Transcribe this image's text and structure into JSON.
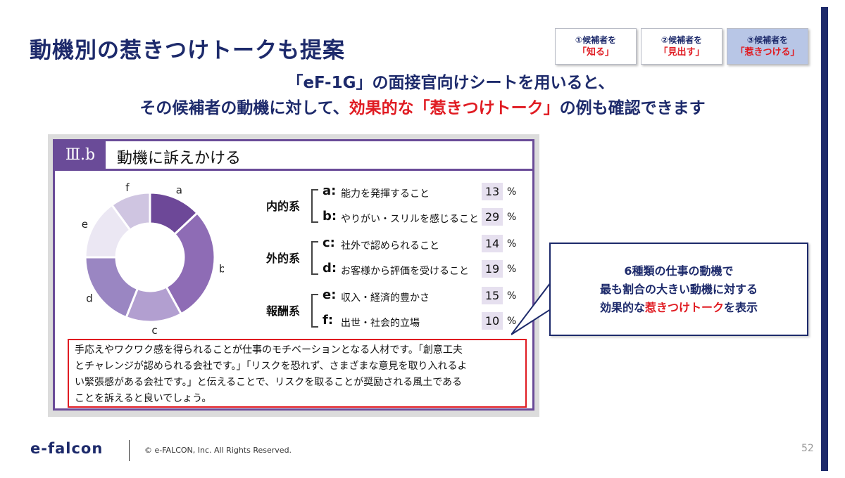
{
  "title": "動機別の惹きつけトークも提案",
  "steps": [
    {
      "top": "①候補者を",
      "bottom": "「知る」",
      "active": false
    },
    {
      "top": "②候補者を",
      "bottom": "「見出す」",
      "active": false
    },
    {
      "top": "③候補者を",
      "bottom": "「惹きつける」",
      "active": true
    }
  ],
  "subtitle": {
    "line1": "「eF-1G」の面接官向けシートを用いると、",
    "line2_pre": "その候補者の動機に対して、",
    "line2_red": "効果的な「惹きつけトーク」",
    "line2_post": "の例も確認できます"
  },
  "panel": {
    "badge": "Ⅲ.b",
    "title": "動機に訴えかける",
    "chart_data": {
      "type": "pie",
      "categories": [
        "a",
        "b",
        "c",
        "d",
        "e",
        "f"
      ],
      "values": [
        13,
        29,
        14,
        19,
        15,
        10
      ],
      "colors": [
        "#6d4898",
        "#8e6cb5",
        "#b29fd0",
        "#9a86c2",
        "#ebe7f3",
        "#cfc5e1"
      ]
    },
    "groups": [
      {
        "label": "内的系",
        "items": [
          {
            "letter": "a:",
            "desc": "能力を発揮すること",
            "pct": "13"
          },
          {
            "letter": "b:",
            "desc": "やりがい・スリルを感じること",
            "pct": "29"
          }
        ]
      },
      {
        "label": "外的系",
        "items": [
          {
            "letter": "c:",
            "desc": "社外で認められること",
            "pct": "14"
          },
          {
            "letter": "d:",
            "desc": "お客様から評価を受けること",
            "pct": "19"
          }
        ]
      },
      {
        "label": "報酬系",
        "items": [
          {
            "letter": "e:",
            "desc": "収入・経済的豊かさ",
            "pct": "15"
          },
          {
            "letter": "f:",
            "desc": "出世・社会的立場",
            "pct": "10"
          }
        ]
      }
    ],
    "pct_sign": "%",
    "talk_lines": [
      "手応えやワクワク感を得られることが仕事のモチベーションとなる人材です。「創意工夫",
      "とチャレンジが認められる会社です。」「リスクを恐れず、さまざまな意見を取り入れるよ",
      "い緊張感がある会社です。」と伝えることで、リスクを取ることが奨励される風土である",
      "ことを訴えると良いでしょう。"
    ]
  },
  "callout": {
    "line1": "6種類の仕事の動機で",
    "line2": "最も割合の大きい動機に対する",
    "line3_pre": "効果的な",
    "line3_red": "惹きつけトーク",
    "line3_post": "を表示"
  },
  "footer": {
    "logo": "e-falcon",
    "copyright": "© e-FALCON, Inc. All Rights Reserved.",
    "page": "52"
  }
}
